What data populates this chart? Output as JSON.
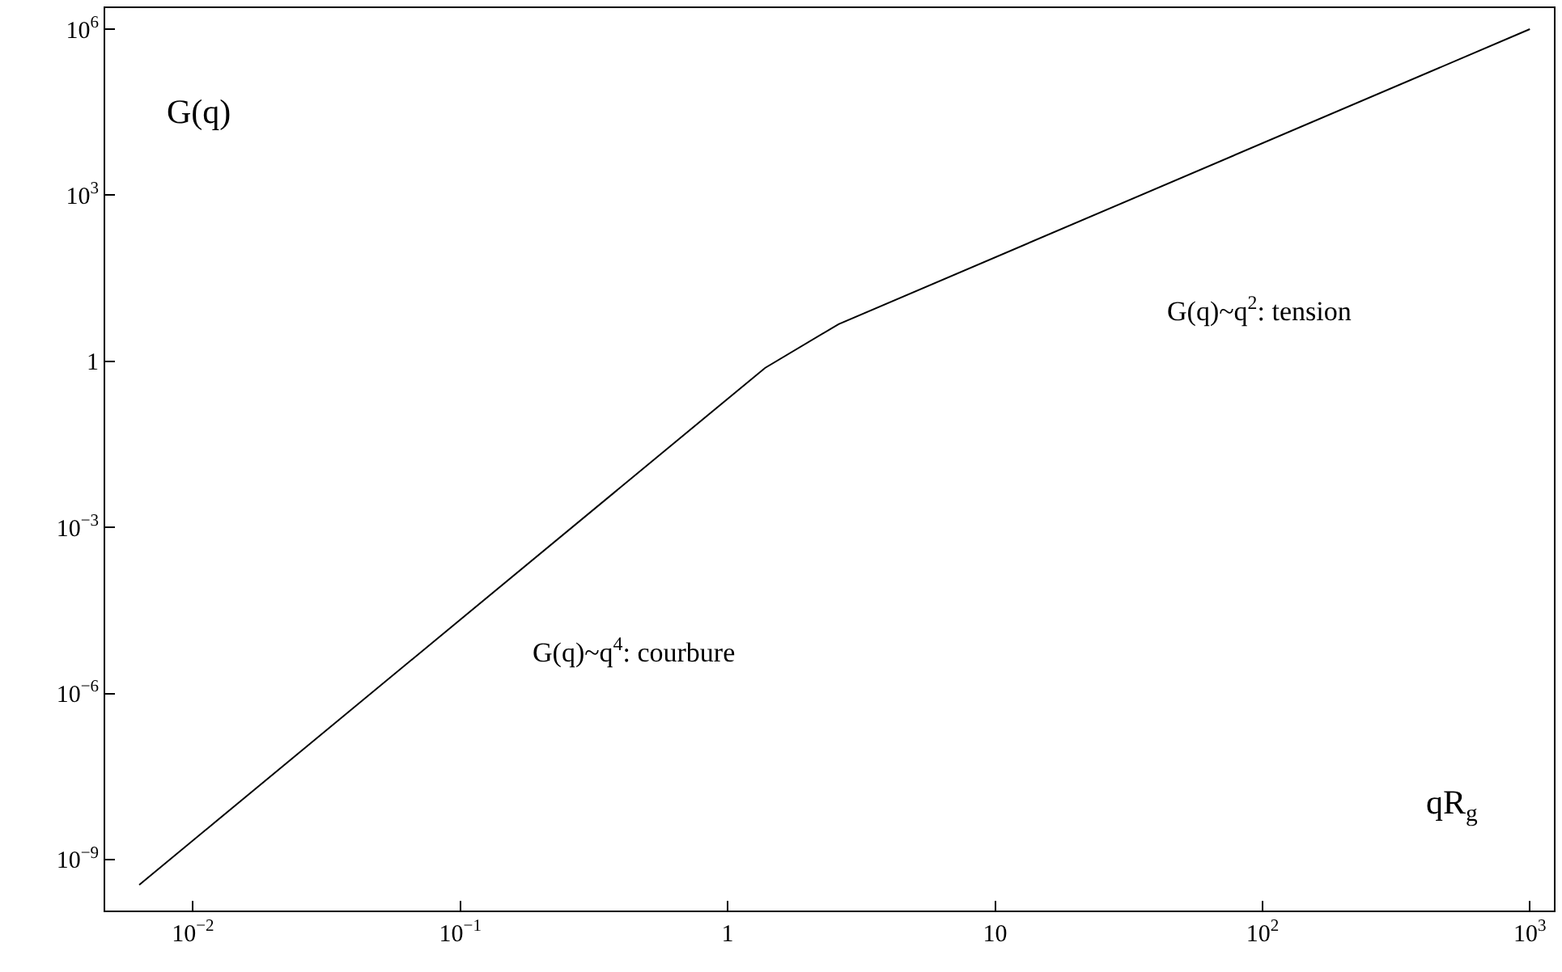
{
  "chart_data": {
    "type": "line",
    "xlabel": "qR$_{g}$",
    "ylabel": "G(q)",
    "x": [
      0.0063,
      1.38,
      2.6,
      1000
    ],
    "series": [
      {
        "color": "#000000",
        "values": [
          3.5e-10,
          0.76,
          4.7,
          1000000
        ]
      }
    ],
    "log": "xy",
    "marker": "none",
    "line_style": "solid",
    "xlim": [
      0.0047,
      1230
    ],
    "ylim": [
      1.2e-10,
      2400000.0
    ],
    "xticks": [
      {
        "value": 0.01,
        "label": "10$^{−2}$"
      },
      {
        "value": 0.1,
        "label": "10$^{−1}$"
      },
      1,
      10,
      {
        "value": 100,
        "label": "10$^{2}$"
      },
      {
        "value": 1000,
        "label": "10$^{3}$"
      }
    ],
    "yticks": [
      {
        "value": 1e-09,
        "label": "10$^{−9}$"
      },
      {
        "value": 1e-06,
        "label": "10$^{−6}$"
      },
      {
        "value": 0.001,
        "label": "10$^{−3}$"
      },
      1,
      {
        "value": 1000,
        "label": "10$^{3}$"
      },
      {
        "value": 1000000,
        "label": "10$^{6}$"
      }
    ],
    "annotations": [
      "G(q)~q$^{2}$: tension",
      "G(q)~q$^{4}$: courbure"
    ]
  }
}
